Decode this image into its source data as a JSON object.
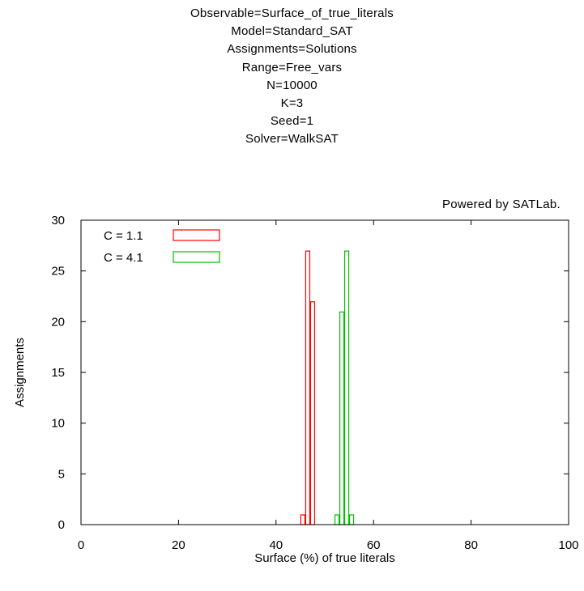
{
  "header": {
    "title_lines": [
      "Observable=Surface_of_true_literals",
      "Model=Standard_SAT",
      "Assignments=Solutions",
      "Range=Free_vars",
      "N=10000",
      "K=3",
      "Seed=1",
      "Solver=WalkSAT"
    ],
    "credit": "Powered by SATLab."
  },
  "chart_data": {
    "type": "bar",
    "xlabel": "Surface (%) of true literals",
    "ylabel": "Assignments",
    "xlim": [
      0,
      100
    ],
    "ylim": [
      0,
      30
    ],
    "xticks": [
      0,
      20,
      40,
      60,
      80,
      100
    ],
    "yticks": [
      0,
      5,
      10,
      15,
      20,
      25,
      30
    ],
    "grid": false,
    "legend_position": "top-left",
    "bin_width": 1,
    "series": [
      {
        "name": "C = 1.1",
        "color": "#ff0000",
        "bins": [
          {
            "x": 45,
            "y": 1
          },
          {
            "x": 46,
            "y": 27
          },
          {
            "x": 47,
            "y": 22
          }
        ]
      },
      {
        "name": "C = 4.1",
        "color": "#00c000",
        "bins": [
          {
            "x": 52,
            "y": 1
          },
          {
            "x": 53,
            "y": 21
          },
          {
            "x": 54,
            "y": 27
          },
          {
            "x": 55,
            "y": 1
          }
        ]
      }
    ]
  }
}
